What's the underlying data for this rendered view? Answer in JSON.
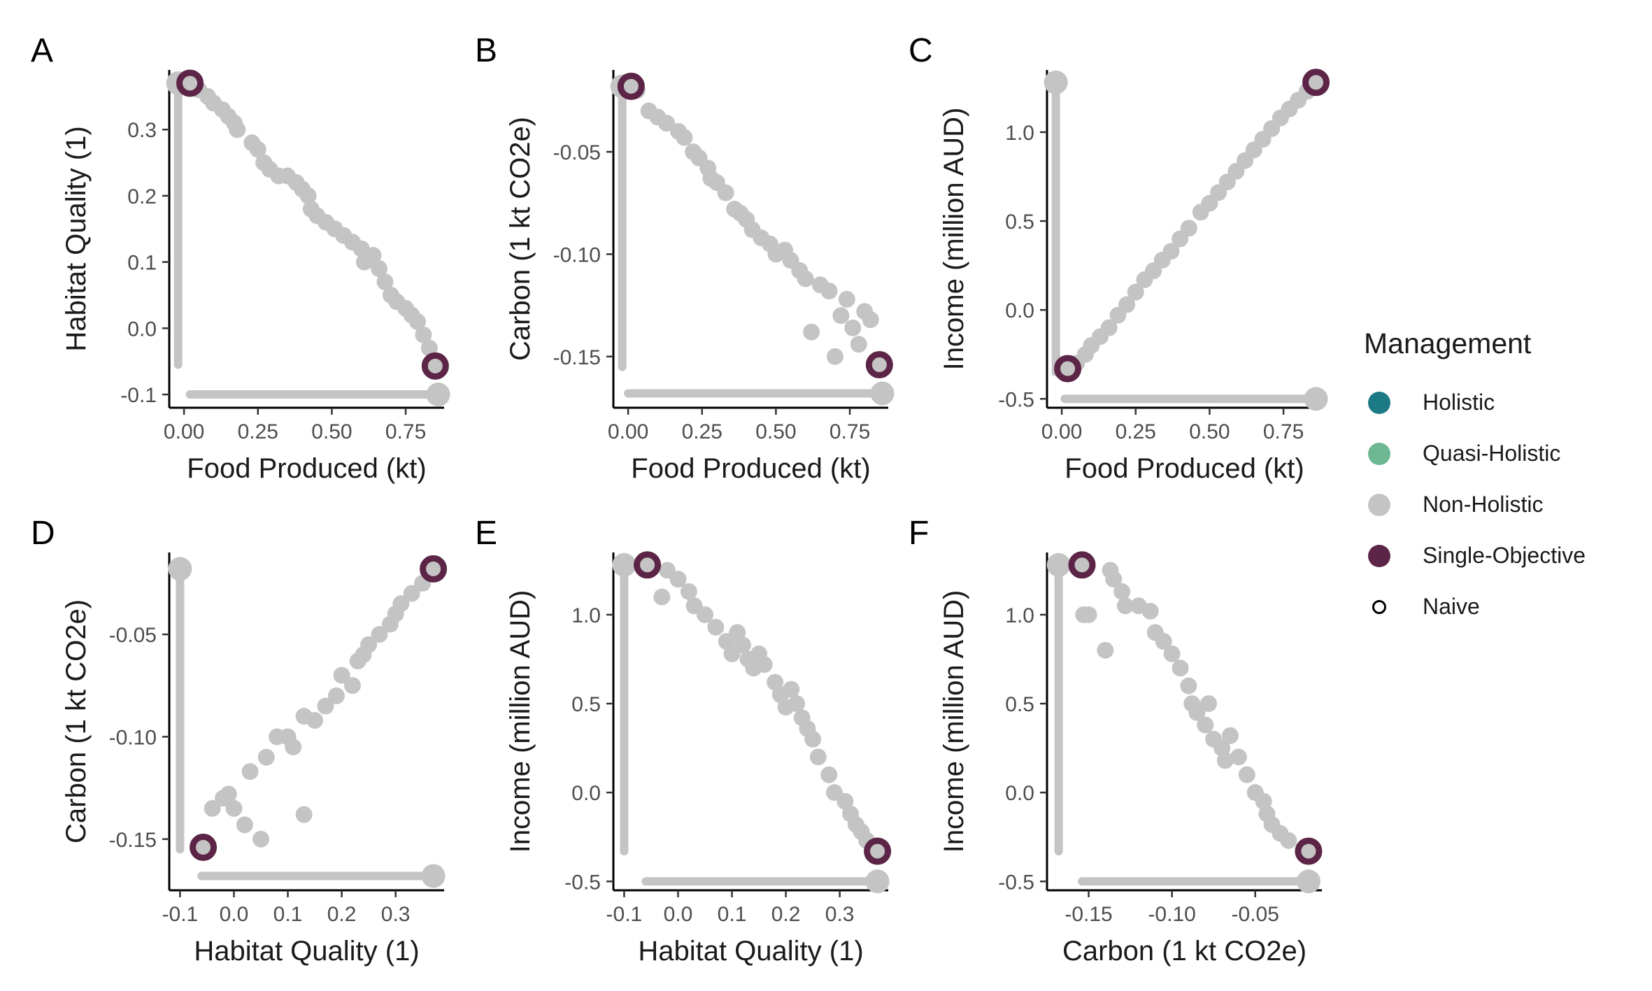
{
  "legend": {
    "title": "Management",
    "items": [
      {
        "label": "Holistic",
        "color": "#1b7a84",
        "shape": "dot"
      },
      {
        "label": "Quasi-Holistic",
        "color": "#6db793",
        "shape": "dot"
      },
      {
        "label": "Non-Holistic",
        "color": "#c4c4c4",
        "shape": "dot"
      },
      {
        "label": "Single-Objective",
        "color": "#5c2547",
        "shape": "dot"
      },
      {
        "label": "Naive",
        "color": "#000000",
        "shape": "ring"
      }
    ]
  },
  "chart_data": [
    {
      "panel": "A",
      "type": "scatter",
      "xlabel": "Food Produced (kt)",
      "ylabel": "Habitat Quality (1)",
      "xlim": [
        -0.05,
        0.88
      ],
      "ylim": [
        -0.12,
        0.39
      ],
      "xticks": [
        0,
        0.25,
        0.5,
        0.75
      ],
      "xtick_labels": [
        "0.00",
        "0.25",
        "0.50",
        "0.75"
      ],
      "yticks": [
        -0.1,
        0,
        0.1,
        0.2,
        0.3
      ],
      "ytick_labels": [
        "-0.1",
        "0.0",
        "0.1",
        "0.2",
        "0.3"
      ],
      "naive_vertical": {
        "x": -0.02,
        "y_from": -0.055,
        "y_to": 0.37
      },
      "naive_horizontal": {
        "y": -0.1,
        "x_from": 0.02,
        "x_to": 0.86
      },
      "naive_end_points": [
        [
          -0.02,
          0.37
        ],
        [
          0.86,
          -0.1
        ]
      ],
      "single_objective": [
        [
          0.02,
          0.37
        ],
        [
          0.85,
          -0.057
        ]
      ],
      "non_holistic": [
        [
          0.05,
          0.36
        ],
        [
          0.08,
          0.35
        ],
        [
          0.1,
          0.34
        ],
        [
          0.13,
          0.33
        ],
        [
          0.15,
          0.32
        ],
        [
          0.17,
          0.31
        ],
        [
          0.18,
          0.3
        ],
        [
          0.23,
          0.28
        ],
        [
          0.25,
          0.27
        ],
        [
          0.27,
          0.25
        ],
        [
          0.29,
          0.24
        ],
        [
          0.32,
          0.23
        ],
        [
          0.35,
          0.23
        ],
        [
          0.38,
          0.22
        ],
        [
          0.4,
          0.21
        ],
        [
          0.42,
          0.2
        ],
        [
          0.43,
          0.18
        ],
        [
          0.45,
          0.17
        ],
        [
          0.48,
          0.16
        ],
        [
          0.51,
          0.15
        ],
        [
          0.54,
          0.14
        ],
        [
          0.57,
          0.13
        ],
        [
          0.6,
          0.12
        ],
        [
          0.61,
          0.1
        ],
        [
          0.64,
          0.11
        ],
        [
          0.66,
          0.09
        ],
        [
          0.68,
          0.07
        ],
        [
          0.7,
          0.05
        ],
        [
          0.72,
          0.04
        ],
        [
          0.75,
          0.03
        ],
        [
          0.77,
          0.02
        ],
        [
          0.79,
          0.01
        ],
        [
          0.81,
          -0.01
        ],
        [
          0.83,
          -0.03
        ]
      ]
    },
    {
      "panel": "B",
      "type": "scatter",
      "xlabel": "Food Produced (kt)",
      "ylabel": "Carbon (1 kt CO2e)",
      "xlim": [
        -0.05,
        0.88
      ],
      "ylim": [
        -0.175,
        -0.01
      ],
      "xticks": [
        0,
        0.25,
        0.5,
        0.75
      ],
      "xtick_labels": [
        "0.00",
        "0.25",
        "0.50",
        "0.75"
      ],
      "yticks": [
        -0.15,
        -0.1,
        -0.05
      ],
      "ytick_labels": [
        "-0.15",
        "-0.10",
        "-0.05"
      ],
      "naive_vertical": {
        "x": -0.02,
        "y_from": -0.155,
        "y_to": -0.018
      },
      "naive_horizontal": {
        "y": -0.168,
        "x_from": 0.0,
        "x_to": 0.86
      },
      "naive_end_points": [
        [
          -0.02,
          -0.018
        ],
        [
          0.86,
          -0.168
        ]
      ],
      "single_objective": [
        [
          0.01,
          -0.018
        ],
        [
          0.85,
          -0.154
        ]
      ],
      "non_holistic": [
        [
          0.03,
          -0.02
        ],
        [
          0.07,
          -0.03
        ],
        [
          0.1,
          -0.033
        ],
        [
          0.13,
          -0.036
        ],
        [
          0.17,
          -0.04
        ],
        [
          0.19,
          -0.043
        ],
        [
          0.22,
          -0.05
        ],
        [
          0.24,
          -0.053
        ],
        [
          0.27,
          -0.058
        ],
        [
          0.28,
          -0.063
        ],
        [
          0.3,
          -0.065
        ],
        [
          0.33,
          -0.07
        ],
        [
          0.36,
          -0.078
        ],
        [
          0.38,
          -0.08
        ],
        [
          0.4,
          -0.083
        ],
        [
          0.42,
          -0.088
        ],
        [
          0.45,
          -0.092
        ],
        [
          0.48,
          -0.095
        ],
        [
          0.5,
          -0.1
        ],
        [
          0.53,
          -0.098
        ],
        [
          0.55,
          -0.103
        ],
        [
          0.58,
          -0.108
        ],
        [
          0.6,
          -0.112
        ],
        [
          0.62,
          -0.138
        ],
        [
          0.65,
          -0.115
        ],
        [
          0.68,
          -0.118
        ],
        [
          0.7,
          -0.15
        ],
        [
          0.72,
          -0.13
        ],
        [
          0.74,
          -0.122
        ],
        [
          0.76,
          -0.136
        ],
        [
          0.78,
          -0.144
        ],
        [
          0.8,
          -0.128
        ],
        [
          0.82,
          -0.132
        ]
      ]
    },
    {
      "panel": "C",
      "type": "scatter",
      "xlabel": "Food Produced (kt)",
      "ylabel": "Income (million AUD)",
      "xlim": [
        -0.05,
        0.88
      ],
      "ylim": [
        -0.55,
        1.35
      ],
      "xticks": [
        0,
        0.25,
        0.5,
        0.75
      ],
      "xtick_labels": [
        "0.00",
        "0.25",
        "0.50",
        "0.75"
      ],
      "yticks": [
        -0.5,
        0,
        0.5,
        1.0
      ],
      "ytick_labels": [
        "-0.5",
        "0.0",
        "0.5",
        "1.0"
      ],
      "naive_vertical": {
        "x": -0.02,
        "y_from": -0.35,
        "y_to": 1.28
      },
      "naive_horizontal": {
        "y": -0.5,
        "x_from": 0.01,
        "x_to": 0.86
      },
      "naive_end_points": [
        [
          -0.02,
          1.28
        ],
        [
          0.86,
          -0.5
        ]
      ],
      "single_objective": [
        [
          0.02,
          -0.33
        ],
        [
          0.86,
          1.28
        ]
      ],
      "non_holistic": [
        [
          0.05,
          -0.3
        ],
        [
          0.08,
          -0.25
        ],
        [
          0.1,
          -0.2
        ],
        [
          0.13,
          -0.15
        ],
        [
          0.16,
          -0.1
        ],
        [
          0.19,
          -0.03
        ],
        [
          0.22,
          0.03
        ],
        [
          0.25,
          0.1
        ],
        [
          0.28,
          0.17
        ],
        [
          0.31,
          0.22
        ],
        [
          0.34,
          0.28
        ],
        [
          0.37,
          0.33
        ],
        [
          0.4,
          0.4
        ],
        [
          0.43,
          0.46
        ],
        [
          0.47,
          0.55
        ],
        [
          0.5,
          0.6
        ],
        [
          0.53,
          0.66
        ],
        [
          0.56,
          0.72
        ],
        [
          0.59,
          0.78
        ],
        [
          0.62,
          0.84
        ],
        [
          0.65,
          0.9
        ],
        [
          0.68,
          0.96
        ],
        [
          0.71,
          1.02
        ],
        [
          0.74,
          1.08
        ],
        [
          0.77,
          1.13
        ],
        [
          0.8,
          1.18
        ],
        [
          0.83,
          1.23
        ]
      ]
    },
    {
      "panel": "D",
      "type": "scatter",
      "xlabel": "Habitat Quality (1)",
      "ylabel": "Carbon (1 kt CO2e)",
      "xlim": [
        -0.12,
        0.39
      ],
      "ylim": [
        -0.175,
        -0.01
      ],
      "xticks": [
        -0.1,
        0,
        0.1,
        0.2,
        0.3
      ],
      "xtick_labels": [
        "-0.1",
        "0.0",
        "0.1",
        "0.2",
        "0.3"
      ],
      "yticks": [
        -0.15,
        -0.1,
        -0.05
      ],
      "ytick_labels": [
        "-0.15",
        "-0.10",
        "-0.05"
      ],
      "naive_vertical": {
        "x": -0.1,
        "y_from": -0.155,
        "y_to": -0.018
      },
      "naive_horizontal": {
        "y": -0.168,
        "x_from": -0.06,
        "x_to": 0.37
      },
      "naive_end_points": [
        [
          -0.1,
          -0.018
        ],
        [
          0.37,
          -0.168
        ]
      ],
      "single_objective": [
        [
          -0.057,
          -0.154
        ],
        [
          0.37,
          -0.018
        ]
      ],
      "non_holistic": [
        [
          -0.04,
          -0.135
        ],
        [
          -0.02,
          -0.13
        ],
        [
          -0.01,
          -0.128
        ],
        [
          0.0,
          -0.135
        ],
        [
          0.02,
          -0.143
        ],
        [
          0.03,
          -0.117
        ],
        [
          0.05,
          -0.15
        ],
        [
          0.06,
          -0.11
        ],
        [
          0.08,
          -0.1
        ],
        [
          0.1,
          -0.1
        ],
        [
          0.11,
          -0.105
        ],
        [
          0.13,
          -0.09
        ],
        [
          0.13,
          -0.138
        ],
        [
          0.15,
          -0.092
        ],
        [
          0.17,
          -0.085
        ],
        [
          0.19,
          -0.08
        ],
        [
          0.2,
          -0.07
        ],
        [
          0.22,
          -0.075
        ],
        [
          0.23,
          -0.063
        ],
        [
          0.24,
          -0.06
        ],
        [
          0.25,
          -0.055
        ],
        [
          0.27,
          -0.05
        ],
        [
          0.29,
          -0.045
        ],
        [
          0.3,
          -0.04
        ],
        [
          0.31,
          -0.035
        ],
        [
          0.33,
          -0.03
        ],
        [
          0.35,
          -0.025
        ]
      ]
    },
    {
      "panel": "E",
      "type": "scatter",
      "xlabel": "Habitat Quality (1)",
      "ylabel": "Income (million AUD)",
      "xlim": [
        -0.12,
        0.39
      ],
      "ylim": [
        -0.55,
        1.35
      ],
      "xticks": [
        -0.1,
        0,
        0.1,
        0.2,
        0.3
      ],
      "xtick_labels": [
        "-0.1",
        "0.0",
        "0.1",
        "0.2",
        "0.3"
      ],
      "yticks": [
        -0.5,
        0,
        0.5,
        1.0
      ],
      "ytick_labels": [
        "-0.5",
        "0.0",
        "0.5",
        "1.0"
      ],
      "naive_vertical": {
        "x": -0.1,
        "y_from": -0.33,
        "y_to": 1.28
      },
      "naive_horizontal": {
        "y": -0.5,
        "x_from": -0.06,
        "x_to": 0.37
      },
      "naive_end_points": [
        [
          -0.1,
          1.28
        ],
        [
          0.37,
          -0.5
        ]
      ],
      "single_objective": [
        [
          -0.057,
          1.28
        ],
        [
          0.37,
          -0.33
        ]
      ],
      "non_holistic": [
        [
          -0.02,
          1.25
        ],
        [
          0.0,
          1.2
        ],
        [
          -0.03,
          1.1
        ],
        [
          0.02,
          1.13
        ],
        [
          0.03,
          1.05
        ],
        [
          0.05,
          1.0
        ],
        [
          0.07,
          0.93
        ],
        [
          0.09,
          0.85
        ],
        [
          0.1,
          0.78
        ],
        [
          0.11,
          0.9
        ],
        [
          0.12,
          0.83
        ],
        [
          0.13,
          0.75
        ],
        [
          0.14,
          0.7
        ],
        [
          0.15,
          0.78
        ],
        [
          0.16,
          0.72
        ],
        [
          0.18,
          0.62
        ],
        [
          0.19,
          0.55
        ],
        [
          0.2,
          0.48
        ],
        [
          0.21,
          0.58
        ],
        [
          0.22,
          0.5
        ],
        [
          0.23,
          0.42
        ],
        [
          0.24,
          0.36
        ],
        [
          0.25,
          0.3
        ],
        [
          0.26,
          0.2
        ],
        [
          0.28,
          0.1
        ],
        [
          0.29,
          0.0
        ],
        [
          0.31,
          -0.05
        ],
        [
          0.32,
          -0.12
        ],
        [
          0.33,
          -0.18
        ],
        [
          0.34,
          -0.22
        ],
        [
          0.35,
          -0.27
        ]
      ]
    },
    {
      "panel": "F",
      "type": "scatter",
      "xlabel": "Carbon (1 kt CO2e)",
      "ylabel": "Income (million AUD)",
      "xlim": [
        -0.175,
        -0.01
      ],
      "ylim": [
        -0.55,
        1.35
      ],
      "xticks": [
        -0.15,
        -0.1,
        -0.05
      ],
      "xtick_labels": [
        "-0.15",
        "-0.10",
        "-0.05"
      ],
      "yticks": [
        -0.5,
        0,
        0.5,
        1.0
      ],
      "ytick_labels": [
        "-0.5",
        "0.0",
        "0.5",
        "1.0"
      ],
      "naive_vertical": {
        "x": -0.168,
        "y_from": -0.33,
        "y_to": 1.28
      },
      "naive_horizontal": {
        "y": -0.5,
        "x_from": -0.154,
        "x_to": -0.018
      },
      "naive_end_points": [
        [
          -0.168,
          1.28
        ],
        [
          -0.018,
          -0.5
        ]
      ],
      "single_objective": [
        [
          -0.154,
          1.28
        ],
        [
          -0.018,
          -0.33
        ]
      ],
      "non_holistic": [
        [
          -0.153,
          1.0
        ],
        [
          -0.15,
          1.0
        ],
        [
          -0.14,
          0.8
        ],
        [
          -0.137,
          1.25
        ],
        [
          -0.135,
          1.2
        ],
        [
          -0.13,
          1.13
        ],
        [
          -0.128,
          1.05
        ],
        [
          -0.12,
          1.05
        ],
        [
          -0.113,
          1.02
        ],
        [
          -0.11,
          0.9
        ],
        [
          -0.105,
          0.85
        ],
        [
          -0.1,
          0.78
        ],
        [
          -0.095,
          0.7
        ],
        [
          -0.09,
          0.6
        ],
        [
          -0.088,
          0.5
        ],
        [
          -0.085,
          0.45
        ],
        [
          -0.08,
          0.38
        ],
        [
          -0.078,
          0.5
        ],
        [
          -0.075,
          0.3
        ],
        [
          -0.07,
          0.25
        ],
        [
          -0.068,
          0.18
        ],
        [
          -0.065,
          0.32
        ],
        [
          -0.06,
          0.2
        ],
        [
          -0.055,
          0.1
        ],
        [
          -0.05,
          0.0
        ],
        [
          -0.045,
          -0.05
        ],
        [
          -0.043,
          -0.12
        ],
        [
          -0.04,
          -0.18
        ],
        [
          -0.035,
          -0.23
        ],
        [
          -0.03,
          -0.27
        ]
      ]
    }
  ]
}
